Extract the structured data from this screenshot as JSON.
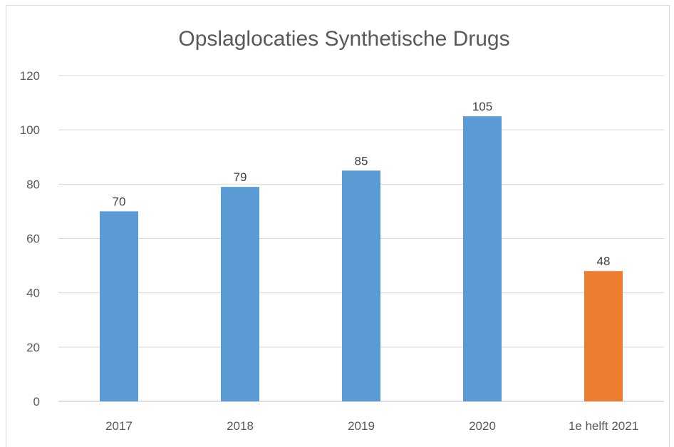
{
  "chart_data": {
    "type": "bar",
    "title": "Opslaglocaties Synthetische Drugs",
    "categories": [
      "2017",
      "2018",
      "2019",
      "2020",
      "1e helft 2021"
    ],
    "values": [
      70,
      79,
      85,
      105,
      48
    ],
    "bar_colors": [
      "#5b9bd5",
      "#5b9bd5",
      "#5b9bd5",
      "#5b9bd5",
      "#ed7d31"
    ],
    "ylim": [
      0,
      120
    ],
    "yticks": [
      0,
      20,
      40,
      60,
      80,
      100,
      120
    ],
    "grid": true,
    "data_labels": true,
    "legend": "none"
  }
}
